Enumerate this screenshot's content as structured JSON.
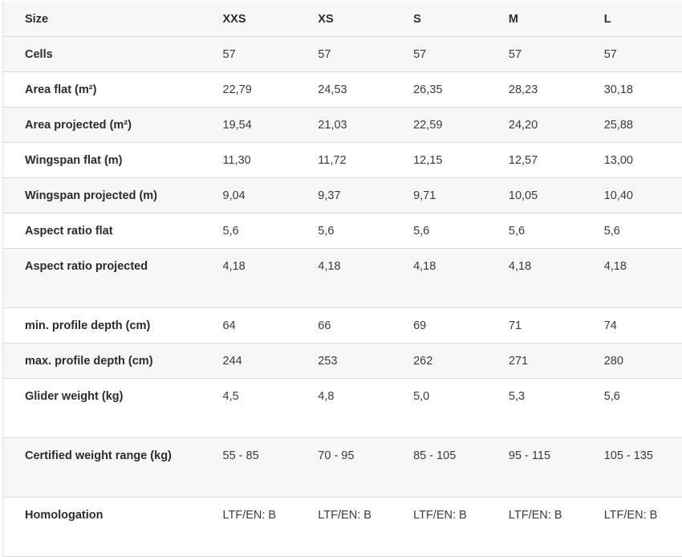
{
  "table": {
    "header": {
      "label": "Size",
      "sizes": [
        "XXS",
        "XS",
        "S",
        "M",
        "L"
      ]
    },
    "rows": [
      {
        "label": "Cells",
        "values": [
          "57",
          "57",
          "57",
          "57",
          "57"
        ]
      },
      {
        "label": "Area flat (m²)",
        "values": [
          "22,79",
          "24,53",
          "26,35",
          "28,23",
          "30,18"
        ]
      },
      {
        "label": "Area projected (m²)",
        "values": [
          "19,54",
          "21,03",
          "22,59",
          "24,20",
          "25,88"
        ]
      },
      {
        "label": "Wingspan flat (m)",
        "values": [
          "11,30",
          "11,72",
          "12,15",
          "12,57",
          "13,00"
        ]
      },
      {
        "label": "Wingspan projected (m)",
        "values": [
          "9,04",
          "9,37",
          "9,71",
          "10,05",
          "10,40"
        ]
      },
      {
        "label": "Aspect ratio flat",
        "values": [
          "5,6",
          "5,6",
          "5,6",
          "5,6",
          "5,6"
        ]
      },
      {
        "label": "Aspect ratio projected",
        "values": [
          "4,18",
          "4,18",
          "4,18",
          "4,18",
          "4,18"
        ]
      },
      {
        "label": "min. profile depth (cm)",
        "values": [
          "64",
          "66",
          "69",
          "71",
          "74"
        ]
      },
      {
        "label": "max. profile depth (cm)",
        "values": [
          "244",
          "253",
          "262",
          "271",
          "280"
        ]
      },
      {
        "label": "Glider weight (kg)",
        "values": [
          "4,5",
          "4,8",
          "5,0",
          "5,3",
          "5,6"
        ]
      },
      {
        "label": "Certified weight range (kg)",
        "values": [
          "55 - 85",
          "70 - 95",
          "85 - 105",
          "95 - 115",
          "105 - 135"
        ]
      },
      {
        "label": "Homologation",
        "values": [
          "LTF/EN: B",
          "LTF/EN: B",
          "LTF/EN: B",
          "LTF/EN: B",
          "LTF/EN: B"
        ]
      }
    ]
  }
}
